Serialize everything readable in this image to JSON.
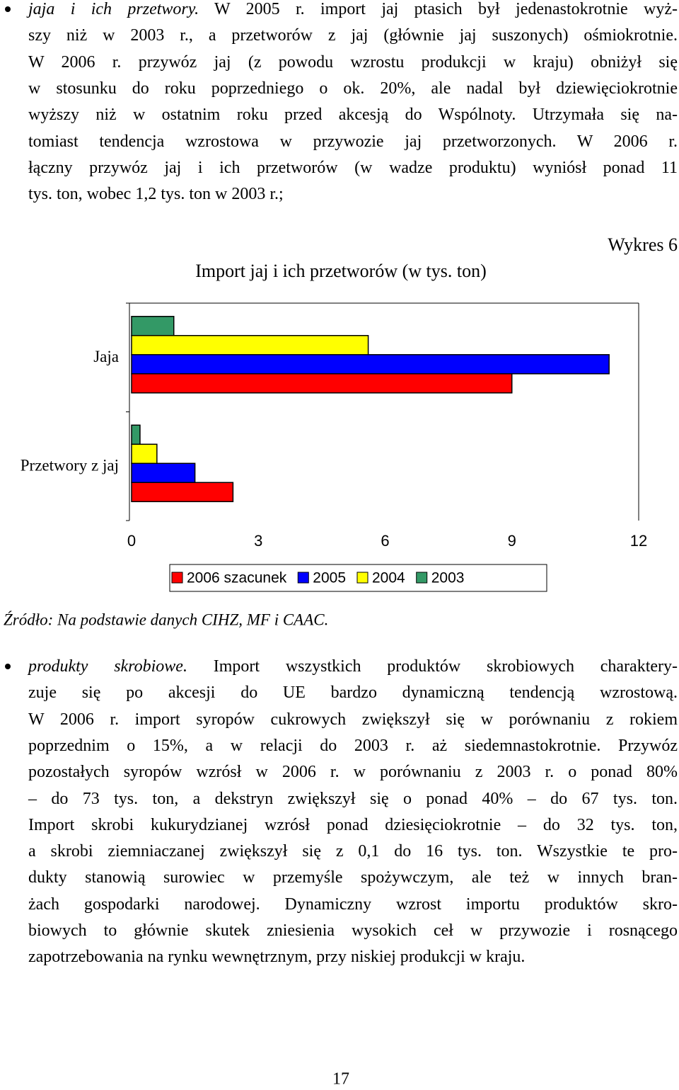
{
  "paragraphs": [
    {
      "lead": "jaja i ich przetwory.",
      "lines": [
        "W 2005 r. import jaj ptasich był jedenastokrotnie wyż-",
        "szy niż w 2003 r., a przetworów z jaj (głównie jaj suszonych) ośmiokrotnie.",
        "W 2006 r. przywóz jaj (z powodu wzrostu produkcji w kraju) obniżył się",
        "w stosunku do roku poprzedniego o ok. 20%, ale nadal był dziewięciokrotnie",
        "wyższy niż w ostatnim roku przed akcesją do Wspólnoty. Utrzymała się na-",
        "tomiast tendencja wzrostowa w przywozie jaj przetworzonych. W 2006 r.",
        "łączny przywóz jaj i ich przetworów (w wadze produktu) wyniósł ponad 11",
        "tys. ton, wobec 1,2 tys. ton w 2003 r.;"
      ]
    },
    {
      "lead": "produkty skrobiowe.",
      "lines": [
        "Import wszystkich produktów skrobiowych charaktery-",
        "zuje się po akcesji do UE bardzo dynamiczną tendencją wzrostową.",
        "W 2006 r. import syropów cukrowych zwiększył się w porównaniu z rokiem",
        "poprzednim o 15%, a w relacji do 2003 r. aż siedemnastokrotnie. Przywóz",
        "pozostałych syropów wzrósł w 2006 r. w porównaniu z 2003 r. o ponad 80%",
        "– do 73 tys. ton, a dekstryn zwiększył się o ponad 40% – do 67 tys. ton.",
        "Import skrobi kukurydzianej wzrósł ponad dziesięciokrotnie – do 32 tys. ton,",
        "a skrobi ziemniaczanej zwiększył się z 0,1 do 16 tys. ton. Wszystkie te pro-",
        "dukty stanowią surowiec w przemyśle spożywczym, ale też w innych bran-",
        "żach gospodarki narodowej. Dynamiczny wzrost importu produktów skro-",
        "biowych to głównie skutek zniesienia wysokich ceł w przywozie i rosnącego",
        "zapotrzebowania na rynku wewnętrznym, przy niskiej produkcji w kraju."
      ]
    }
  ],
  "figure_label": "Wykres 6",
  "source": "Źródło: Na podstawie danych CIHZ, MF i CAAC.",
  "page_number": "17",
  "chart_data": {
    "type": "bar",
    "orientation": "horizontal",
    "title": "Import jaj i ich przetworów (w tys. ton)",
    "categories": [
      "Jaja",
      "Przetwory z jaj"
    ],
    "series": [
      {
        "name": "2006 szacunek",
        "color": "#ff0000",
        "values": [
          9.0,
          2.4
        ]
      },
      {
        "name": "2005",
        "color": "#0000ff",
        "values": [
          11.3,
          1.5
        ]
      },
      {
        "name": "2004",
        "color": "#ffff00",
        "values": [
          5.6,
          0.6
        ]
      },
      {
        "name": "2003",
        "color": "#339966",
        "values": [
          1.0,
          0.2
        ]
      }
    ],
    "xlim": [
      0,
      12
    ],
    "xticks": [
      0,
      3,
      6,
      9,
      12
    ],
    "legend": "bottom"
  }
}
